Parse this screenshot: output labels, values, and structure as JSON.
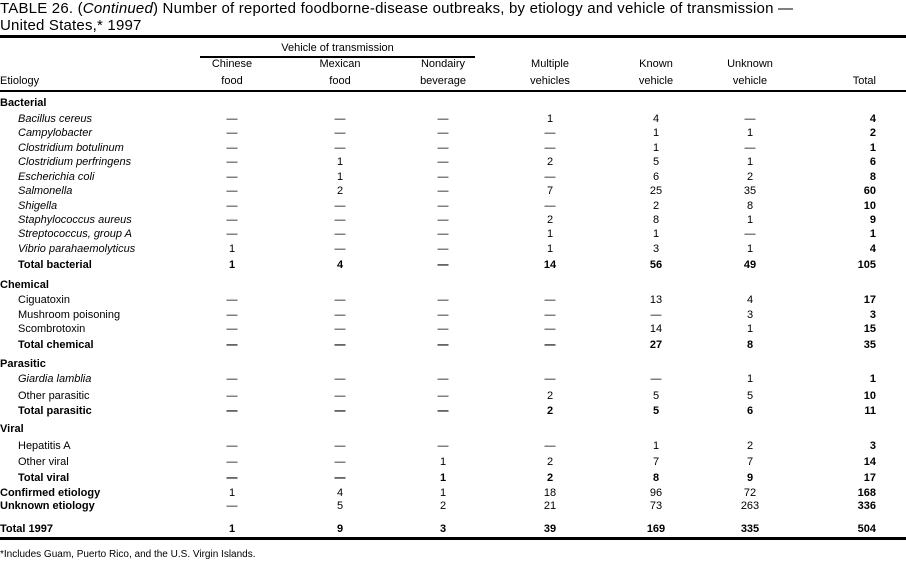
{
  "title": {
    "prefix": "TABLE 26. (",
    "continued": "Continued",
    "main": ") Number of reported foodborne-disease  outbreaks, by etiology and vehicle of transmission —",
    "line2": "United States,* 1997"
  },
  "header": {
    "group": "Vehicle of transmission",
    "etiology": "Etiology",
    "columns": [
      {
        "line1": "Chinese",
        "line2": "food"
      },
      {
        "line1": "Mexican",
        "line2": "food"
      },
      {
        "line1": "Nondairy",
        "line2": "beverage"
      },
      {
        "line1": "Multiple",
        "line2": "vehicles"
      },
      {
        "line1": "Known",
        "line2": "vehicle"
      },
      {
        "line1": "Unknown",
        "line2": "vehicle"
      },
      {
        "line1": "",
        "line2": "Total"
      }
    ]
  },
  "rows": [
    {
      "label": "Bacterial",
      "type": "section"
    },
    {
      "label": "Bacillus cereus",
      "type": "italic",
      "values": [
        "—",
        "—",
        "—",
        "1",
        "4",
        "—",
        "4"
      ]
    },
    {
      "label": "Campylobacter",
      "type": "italic",
      "values": [
        "—",
        "—",
        "—",
        "—",
        "1",
        "1",
        "2"
      ]
    },
    {
      "label": "Clostridium botulinum",
      "type": "italic",
      "values": [
        "—",
        "—",
        "—",
        "—",
        "1",
        "—",
        "1"
      ]
    },
    {
      "label": "Clostridium perfringens",
      "type": "italic",
      "values": [
        "—",
        "1",
        "—",
        "2",
        "5",
        "1",
        "6"
      ]
    },
    {
      "label": "Escherichia coli",
      "type": "italic",
      "values": [
        "—",
        "1",
        "—",
        "—",
        "6",
        "2",
        "8"
      ]
    },
    {
      "label": "Salmonella",
      "type": "italic",
      "values": [
        "—",
        "2",
        "—",
        "7",
        "25",
        "35",
        "60"
      ]
    },
    {
      "label": "Shigella",
      "type": "italic",
      "values": [
        "—",
        "—",
        "—",
        "—",
        "2",
        "8",
        "10"
      ]
    },
    {
      "label": "Staphylococcus aureus",
      "type": "italic",
      "values": [
        "—",
        "—",
        "—",
        "2",
        "8",
        "1",
        "9"
      ]
    },
    {
      "label": "Streptococcus, group A",
      "type": "italic",
      "values": [
        "—",
        "—",
        "—",
        "1",
        "1",
        "—",
        "1"
      ]
    },
    {
      "label": "Vibrio parahaemolyticus",
      "type": "italic",
      "values": [
        "1",
        "—",
        "—",
        "1",
        "3",
        "1",
        "4"
      ]
    },
    {
      "label": "Total bacterial",
      "type": "subtotal",
      "values": [
        "1",
        "4",
        "—",
        "14",
        "56",
        "49",
        "105"
      ]
    },
    {
      "label": "Chemical",
      "type": "section"
    },
    {
      "label": "Ciguatoxin",
      "type": "plain",
      "values": [
        "—",
        "—",
        "—",
        "—",
        "13",
        "4",
        "17"
      ]
    },
    {
      "label": "Mushroom poisoning",
      "type": "plain",
      "values": [
        "—",
        "—",
        "—",
        "—",
        "—",
        "3",
        "3"
      ]
    },
    {
      "label": "Scombrotoxin",
      "type": "plain",
      "values": [
        "—",
        "—",
        "—",
        "—",
        "14",
        "1",
        "15"
      ]
    },
    {
      "label": "Total chemical",
      "type": "subtotal",
      "values": [
        "—",
        "—",
        "—",
        "—",
        "27",
        "8",
        "35"
      ]
    },
    {
      "label": "Parasitic",
      "type": "section"
    },
    {
      "label": "Giardia lamblia",
      "type": "italic",
      "values": [
        "—",
        "—",
        "—",
        "—",
        "—",
        "1",
        "1"
      ]
    },
    {
      "label": "Other parasitic",
      "type": "plain",
      "values": [
        "—",
        "—",
        "—",
        "2",
        "5",
        "5",
        "10"
      ]
    },
    {
      "label": "Total parasitic",
      "type": "subtotal",
      "values": [
        "—",
        "—",
        "—",
        "2",
        "5",
        "6",
        "11"
      ]
    },
    {
      "label": "Viral",
      "type": "section"
    },
    {
      "label": "Hepatitis A",
      "type": "plain",
      "values": [
        "—",
        "—",
        "—",
        "—",
        "1",
        "2",
        "3"
      ]
    },
    {
      "label": "Other viral",
      "type": "plain",
      "values": [
        "—",
        "—",
        "1",
        "2",
        "7",
        "7",
        "14"
      ]
    },
    {
      "label": "Total viral",
      "type": "subtotal",
      "values": [
        "—",
        "—",
        "1",
        "2",
        "8",
        "9",
        "17"
      ]
    },
    {
      "label": "Confirmed etiology",
      "type": "summary",
      "values": [
        "1",
        "4",
        "1",
        "18",
        "96",
        "72",
        "168"
      ]
    },
    {
      "label": "Unknown etiology",
      "type": "summary",
      "values": [
        "—",
        "5",
        "2",
        "21",
        "73",
        "263",
        "336"
      ]
    },
    {
      "label": "Total 1997",
      "type": "grand",
      "values": [
        "1",
        "9",
        "3",
        "39",
        "169",
        "335",
        "504"
      ]
    }
  ],
  "footnote": "*Includes Guam, Puerto Rico, and the U.S. Virgin Islands."
}
